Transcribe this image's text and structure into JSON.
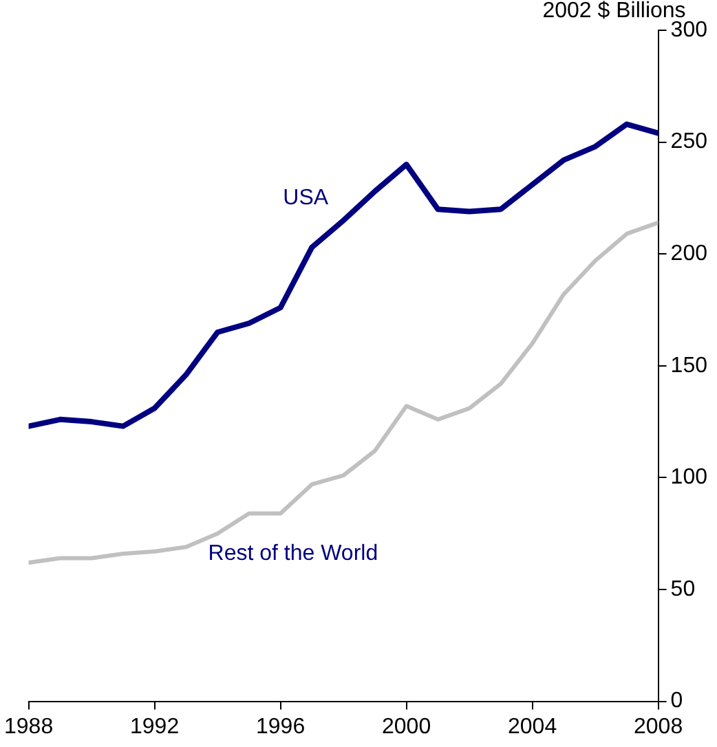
{
  "chart_data": {
    "type": "line",
    "ylabel": "2002 $ Billions",
    "x": [
      1988,
      1989,
      1990,
      1991,
      1992,
      1993,
      1994,
      1995,
      1996,
      1997,
      1998,
      1999,
      2000,
      2001,
      2002,
      2003,
      2004,
      2005,
      2006,
      2007,
      2008
    ],
    "series": [
      {
        "name": "USA",
        "color": "#000080",
        "values": [
          123,
          126,
          125,
          123,
          131,
          146,
          165,
          169,
          176,
          203,
          215,
          228,
          240,
          220,
          219,
          220,
          231,
          242,
          248,
          258,
          254
        ]
      },
      {
        "name": "Rest of the World",
        "color": "#c0c0c0",
        "values": [
          62,
          64,
          64,
          66,
          67,
          69,
          75,
          84,
          84,
          97,
          101,
          112,
          132,
          126,
          131,
          142,
          160,
          182,
          197,
          209,
          214
        ]
      }
    ],
    "xlim": [
      1988,
      2008
    ],
    "xticks": [
      1988,
      1992,
      1996,
      2000,
      2004,
      2008
    ],
    "ylim": [
      0,
      300
    ],
    "yticks": [
      0,
      50,
      100,
      150,
      200,
      250,
      300
    ],
    "grid": false,
    "legend": false,
    "marker": "none",
    "line_style": "solid"
  }
}
